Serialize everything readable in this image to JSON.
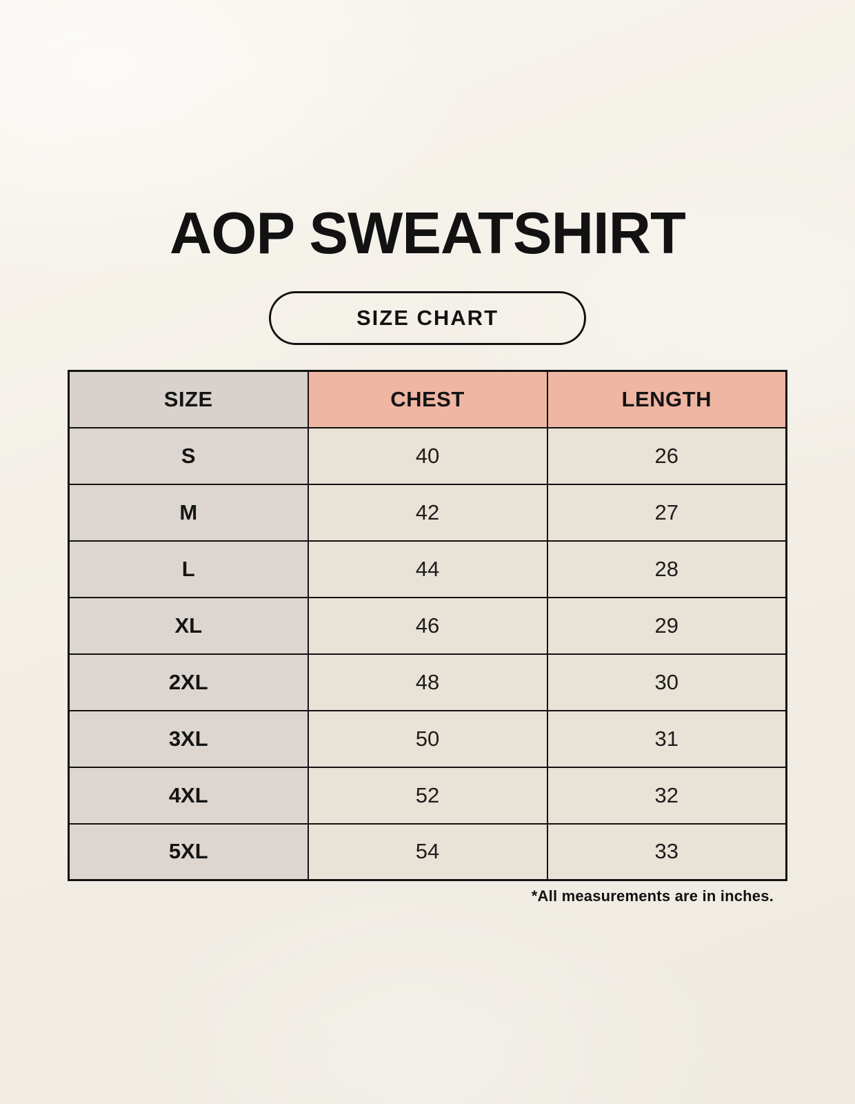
{
  "page": {
    "title": "AOP SWEATSHIRT",
    "size_chart_badge": "SIZE CHART",
    "footnote": "*All measurements are in inches."
  },
  "chart_data": {
    "type": "table",
    "title": "AOP SWEATSHIRT",
    "subtitle": "SIZE CHART",
    "columns": [
      "SIZE",
      "CHEST",
      "LENGTH"
    ],
    "rows": [
      [
        "S",
        40,
        26
      ],
      [
        "M",
        42,
        27
      ],
      [
        "L",
        44,
        28
      ],
      [
        "XL",
        46,
        29
      ],
      [
        "2XL",
        48,
        30
      ],
      [
        "3XL",
        50,
        31
      ],
      [
        "4XL",
        52,
        32
      ],
      [
        "5XL",
        54,
        33
      ]
    ],
    "units": "inches",
    "note": "*All measurements are in inches."
  },
  "colors": {
    "background": "#f3efe7",
    "header_size_bg": "#d8d1cc",
    "header_measure_bg": "#efb6a4",
    "size_col_bg": "#dcd5d0",
    "data_cell_bg": "#e9e2d6",
    "border": "#111111",
    "text": "#141414"
  }
}
